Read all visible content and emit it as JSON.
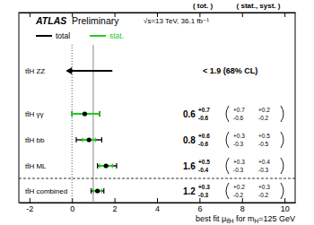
{
  "chart_data": {
    "type": "forest",
    "title": "ATLAS",
    "subtitle": "Preliminary",
    "annotations": [
      "√s=13 TeV, 36.1 fb⁻¹"
    ],
    "column_headers": [
      "( tot. )",
      "( stat., syst. )"
    ],
    "categories": [
      "tt̄H ZZ",
      "tt̄H γγ",
      "tt̄H bb",
      "tt̄H ML",
      "tt̄H combined"
    ],
    "values": [
      null,
      0.6,
      0.8,
      1.6,
      1.2
    ],
    "total_up": [
      null,
      0.7,
      0.6,
      0.5,
      0.3
    ],
    "total_down": [
      null,
      -0.6,
      -0.6,
      -0.4,
      -0.3
    ],
    "stat_up": [
      null,
      0.7,
      0.3,
      0.3,
      0.2
    ],
    "stat_down": [
      null,
      -0.6,
      -0.3,
      -0.3,
      -0.2
    ],
    "syst_up": [
      null,
      0.2,
      0.5,
      0.4,
      0.3
    ],
    "syst_down": [
      null,
      -0.2,
      -0.5,
      -0.3,
      -0.2
    ],
    "upper_limits": [
      1.9,
      null,
      null,
      null,
      null
    ],
    "upper_limit_labels": [
      "< 1.9 (68% CL)",
      null,
      null,
      null,
      null
    ],
    "series": [
      {
        "name": "total",
        "color": "#000000"
      },
      {
        "name": "stat.",
        "color": "#22cc22"
      }
    ],
    "ref_lines": [
      {
        "value": 0,
        "line_style": "dotted"
      },
      {
        "value": 1,
        "line_style": "solid"
      }
    ],
    "xlim": [
      -2.5,
      10.5
    ],
    "xticks": [
      -2,
      0,
      2,
      4,
      6,
      8,
      10
    ],
    "xlabel": [
      "best fit μ",
      "tt̄H",
      " for m",
      "H",
      "=125 GeV"
    ]
  }
}
